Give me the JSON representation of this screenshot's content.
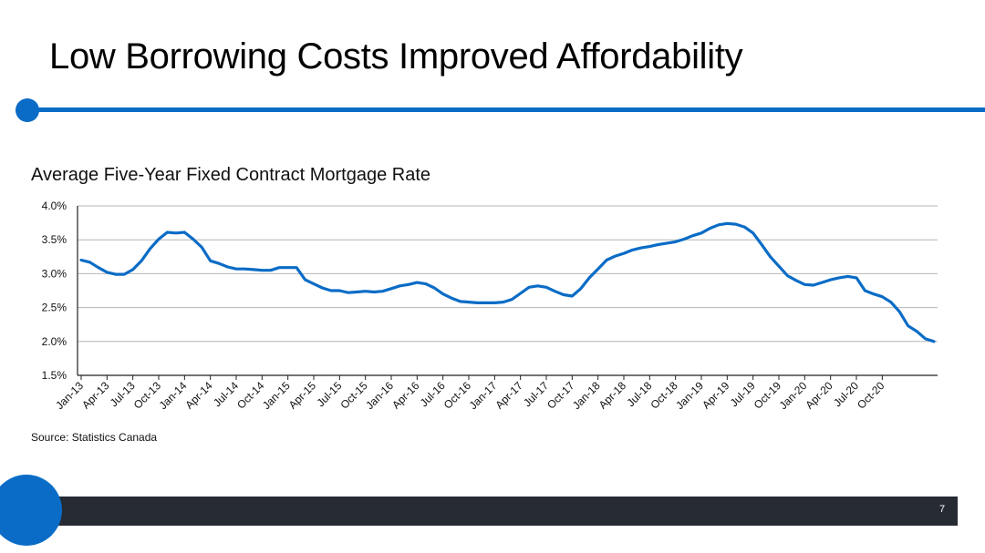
{
  "slide": {
    "title": "Low Borrowing Costs Improved Affordability",
    "source": "Source: Statistics Canada",
    "page_number": "7",
    "accent_color": "#0a6cc6",
    "footer_color": "#252a33"
  },
  "chart_data": {
    "type": "line",
    "title": "Average Five-Year Fixed Contract Mortgage Rate",
    "xlabel": "",
    "ylabel": "",
    "ylim": [
      1.5,
      4.0
    ],
    "grid": true,
    "y_ticks": [
      "1.5%",
      "2.0%",
      "2.5%",
      "3.0%",
      "3.5%",
      "4.0%"
    ],
    "x_tick_labels": [
      "Jan-13",
      "Apr-13",
      "Jul-13",
      "Oct-13",
      "Jan-14",
      "Apr-14",
      "Jul-14",
      "Oct-14",
      "Jan-15",
      "Apr-15",
      "Jul-15",
      "Oct-15",
      "Jan-16",
      "Apr-16",
      "Jul-16",
      "Oct-16",
      "Jan-17",
      "Apr-17",
      "Jul-17",
      "Oct-17",
      "Jan-18",
      "Apr-18",
      "Jul-18",
      "Oct-18",
      "Jan-19",
      "Apr-19",
      "Jul-19",
      "Oct-19",
      "Jan-20",
      "Apr-20",
      "Jul-20",
      "Oct-20"
    ],
    "line_color": "#0a6cc6",
    "series": [
      {
        "values": [
          3.2,
          3.17,
          3.09,
          3.02,
          2.99,
          2.99,
          3.06,
          3.19,
          3.37,
          3.51,
          3.61,
          3.6,
          3.61,
          3.51,
          3.39,
          3.19,
          3.15,
          3.1,
          3.07,
          3.07,
          3.06,
          3.05,
          3.05,
          3.09,
          3.09,
          3.09,
          2.91,
          2.85,
          2.79,
          2.75,
          2.75,
          2.72,
          2.73,
          2.74,
          2.73,
          2.74,
          2.78,
          2.82,
          2.84,
          2.87,
          2.85,
          2.79,
          2.7,
          2.64,
          2.59,
          2.58,
          2.57,
          2.57,
          2.57,
          2.58,
          2.62,
          2.71,
          2.8,
          2.82,
          2.8,
          2.74,
          2.69,
          2.67,
          2.78,
          2.94,
          3.07,
          3.2,
          3.26,
          3.3,
          3.35,
          3.38,
          3.4,
          3.43,
          3.45,
          3.47,
          3.51,
          3.56,
          3.6,
          3.67,
          3.72,
          3.74,
          3.73,
          3.69,
          3.6,
          3.43,
          3.25,
          3.11,
          2.97,
          2.9,
          2.84,
          2.83,
          2.87,
          2.91,
          2.94,
          2.96,
          2.94,
          2.75,
          2.7,
          2.66,
          2.58,
          2.44,
          2.23,
          2.15,
          2.04,
          2.0
        ]
      }
    ]
  }
}
